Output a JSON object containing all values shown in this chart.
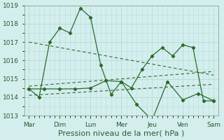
{
  "background_color": "#d4eeee",
  "plot_bg_color": "#d4eeee",
  "grid_color": "#b8ddd8",
  "line_color": "#2d6a2d",
  "xlabel": "Pression niveau de la mer( hPa )",
  "xlabel_fontsize": 8,
  "x_tick_labels": [
    "Mar",
    "Dim",
    "Lun",
    "Mer",
    "Jeu",
    "Ven",
    "Sam"
  ],
  "x_tick_positions": [
    0,
    1,
    2,
    3,
    4,
    5,
    6
  ],
  "ylim": [
    1013,
    1019
  ],
  "yticks": [
    1013,
    1014,
    1015,
    1016,
    1017,
    1018,
    1019
  ],
  "line1": {
    "x": [
      0,
      0.33,
      0.67,
      1.0,
      1.33,
      1.67,
      2.0,
      2.33,
      2.67,
      3.0,
      3.33,
      3.67,
      4.0,
      4.33,
      4.67,
      5.0,
      5.33,
      5.67,
      6.0
    ],
    "y": [
      1014.45,
      1014.0,
      1017.0,
      1017.75,
      1017.5,
      1018.85,
      1018.35,
      1015.75,
      1014.15,
      1014.85,
      1014.5,
      1015.5,
      1016.25,
      1016.7,
      1016.25,
      1016.85,
      1016.7,
      1013.8,
      1013.8
    ]
  },
  "line2": {
    "x": [
      0,
      0.5,
      1.0,
      1.5,
      2.0,
      2.5,
      3.0,
      3.5,
      4.0,
      4.5,
      5.0,
      5.5,
      6.0
    ],
    "y": [
      1014.45,
      1014.45,
      1014.45,
      1014.45,
      1014.5,
      1014.9,
      1014.85,
      1013.6,
      1012.75,
      1014.85,
      1013.85,
      1014.2,
      1013.8
    ]
  },
  "trend1": {
    "x": [
      0,
      6
    ],
    "y": [
      1017.0,
      1015.2
    ]
  },
  "trend2": {
    "x": [
      0,
      6
    ],
    "y": [
      1014.6,
      1015.4
    ]
  },
  "trend3": {
    "x": [
      0,
      6
    ],
    "y": [
      1014.1,
      1014.7
    ]
  }
}
